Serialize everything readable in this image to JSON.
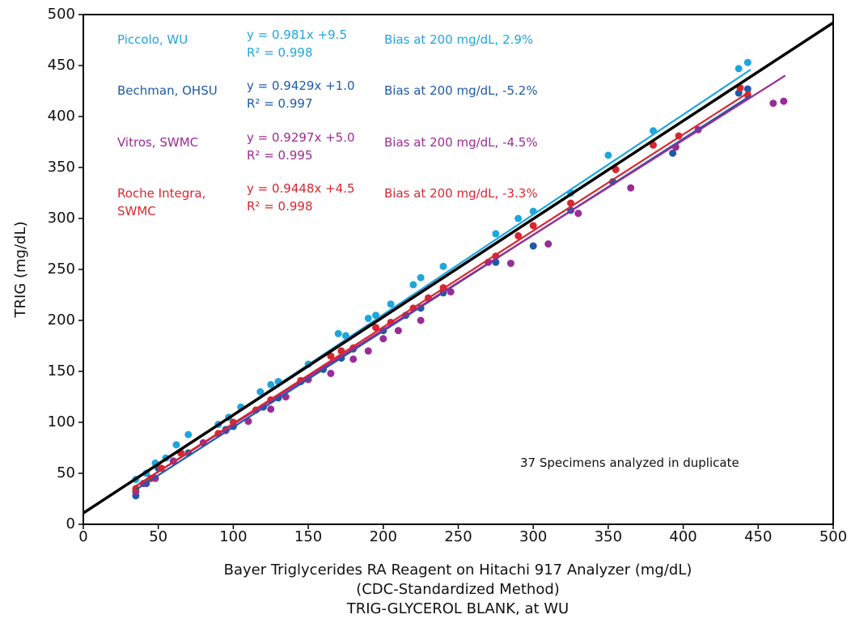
{
  "chart_data": {
    "type": "scatter",
    "x_label": "Bayer Triglycerides RA Reagent on Hitachi 917 Analyzer (mg/dL)",
    "x_label_2": "(CDC-Standardized Method)",
    "x_label_3": "TRIG-GLYCEROL BLANK, at WU",
    "y_label": "TRIG (mg/dL)",
    "annotation": "37 Specimens analyzed in duplicate",
    "xlim": [
      0,
      500
    ],
    "ylim": [
      0,
      500
    ],
    "xticks": [
      0,
      50,
      100,
      150,
      200,
      250,
      300,
      350,
      400,
      450,
      500
    ],
    "yticks": [
      0,
      50,
      100,
      150,
      200,
      250,
      300,
      350,
      400,
      450,
      500
    ],
    "reference_line": {
      "color": "#000000",
      "x": [
        0,
        500
      ],
      "y": [
        11,
        492
      ]
    },
    "series": [
      {
        "name": "Piccolo, WU",
        "color": "#1ea6dd",
        "x": [
          35,
          42,
          48,
          55,
          62,
          70,
          90,
          97,
          105,
          118,
          125,
          130,
          150,
          170,
          175,
          190,
          195,
          205,
          220,
          225,
          240,
          275,
          290,
          300,
          325,
          350,
          380,
          437,
          443
        ],
        "values": [
          44,
          50,
          60,
          65,
          78,
          88,
          98,
          105,
          115,
          130,
          137,
          140,
          157,
          187,
          185,
          202,
          205,
          216,
          235,
          242,
          253,
          285,
          300,
          307,
          325,
          362,
          386,
          447,
          453
        ],
        "fit": {
          "slope": 0.981,
          "intercept": 9.5,
          "xrange": [
            35,
            445
          ],
          "equation": "y = 0.981x +9.5",
          "r2": "R² = 0.998",
          "bias": "Bias at 200 mg/dL, 2.9%"
        }
      },
      {
        "name": "Bechman, OHSU",
        "color": "#1f5aa6",
        "x": [
          35,
          42,
          50,
          60,
          70,
          95,
          100,
          120,
          130,
          145,
          160,
          172,
          180,
          200,
          215,
          225,
          240,
          275,
          300,
          325,
          353,
          393,
          437,
          443
        ],
        "values": [
          28,
          40,
          55,
          62,
          70,
          93,
          96,
          115,
          124,
          140,
          152,
          163,
          172,
          190,
          205,
          212,
          227,
          257,
          273,
          308,
          336,
          364,
          423,
          427
        ],
        "fit": {
          "slope": 0.9429,
          "intercept": 1.0,
          "xrange": [
            35,
            445
          ],
          "equation": "y = 0.9429x +1.0",
          "r2": "R² = 0.997",
          "bias": "Bias at 200 mg/dL, -5.2%"
        }
      },
      {
        "name": "Vitros, SWMC",
        "color": "#9b2b96",
        "x": [
          35,
          40,
          48,
          60,
          80,
          95,
          110,
          125,
          135,
          150,
          165,
          180,
          190,
          200,
          210,
          225,
          245,
          270,
          285,
          310,
          330,
          365,
          395,
          410,
          460,
          467
        ],
        "values": [
          32,
          40,
          45,
          62,
          80,
          92,
          101,
          113,
          125,
          142,
          148,
          162,
          170,
          182,
          190,
          200,
          228,
          257,
          256,
          275,
          305,
          330,
          370,
          387,
          413,
          415
        ],
        "fit": {
          "slope": 0.9297,
          "intercept": 5.0,
          "xrange": [
            35,
            468
          ],
          "equation": "y = 0.9297x +5.0",
          "r2": "R² = 0.995",
          "bias": "Bias at 200 mg/dL, -4.5%"
        }
      },
      {
        "name": "Roche Integra, SWMC",
        "color": "#d7272f",
        "x": [
          35,
          45,
          52,
          65,
          90,
          100,
          115,
          125,
          145,
          165,
          172,
          180,
          195,
          205,
          220,
          230,
          240,
          275,
          290,
          300,
          325,
          355,
          380,
          397,
          438,
          443
        ],
        "values": [
          35,
          45,
          55,
          70,
          89,
          100,
          112,
          122,
          141,
          165,
          170,
          173,
          193,
          198,
          212,
          222,
          232,
          263,
          283,
          293,
          315,
          348,
          372,
          381,
          428,
          421
        ],
        "fit": {
          "slope": 0.9448,
          "intercept": 4.5,
          "xrange": [
            35,
            445
          ],
          "equation": "y = 0.9448x +4.5",
          "r2": "R² = 0.998",
          "bias": "Bias at 200 mg/dL, -3.3%"
        }
      }
    ]
  }
}
